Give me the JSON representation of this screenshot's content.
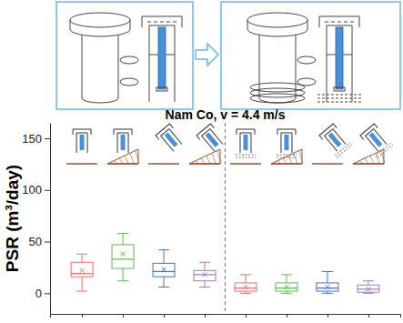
{
  "chart_data": {
    "type": "box",
    "title": "Nam Co, v = 4.4 m/s",
    "y_label": "PSR (m³/day)",
    "categories": [
      null,
      null,
      null,
      null,
      null,
      null,
      null,
      null
    ],
    "boxes": [
      {
        "min": 2,
        "q1": 16,
        "median": 19,
        "q3": 30,
        "max": 38,
        "mean": 22
      },
      {
        "min": 12,
        "q1": 24,
        "median": 33,
        "q3": 47,
        "max": 58,
        "mean": 38
      },
      {
        "min": 6,
        "q1": 16,
        "median": 21,
        "q3": 29,
        "max": 42,
        "mean": 23
      },
      {
        "min": 6,
        "q1": 12,
        "median": 18,
        "q3": 22,
        "max": 30,
        "mean": 18
      },
      {
        "min": 0,
        "q1": 2,
        "median": 5,
        "q3": 10,
        "max": 18,
        "mean": 6
      },
      {
        "min": 0,
        "q1": 2,
        "median": 5,
        "q3": 10,
        "max": 18,
        "mean": 6
      },
      {
        "min": 0,
        "q1": 2,
        "median": 5,
        "q3": 10,
        "max": 21,
        "mean": 6
      },
      {
        "min": 0,
        "q1": 1,
        "median": 4,
        "q3": 8,
        "max": 12,
        "mean": 4
      }
    ],
    "colors": [
      "#e3706b",
      "#5cba52",
      "#4b6fc4",
      "#a377c0",
      "#e3706b",
      "#5cba52",
      "#4b6fc4",
      "#a377c0"
    ],
    "marker": "x",
    "ylim": [
      -20,
      165
    ],
    "yticks": [
      0,
      50,
      100,
      150
    ],
    "tick_labels": "y"
  }
}
